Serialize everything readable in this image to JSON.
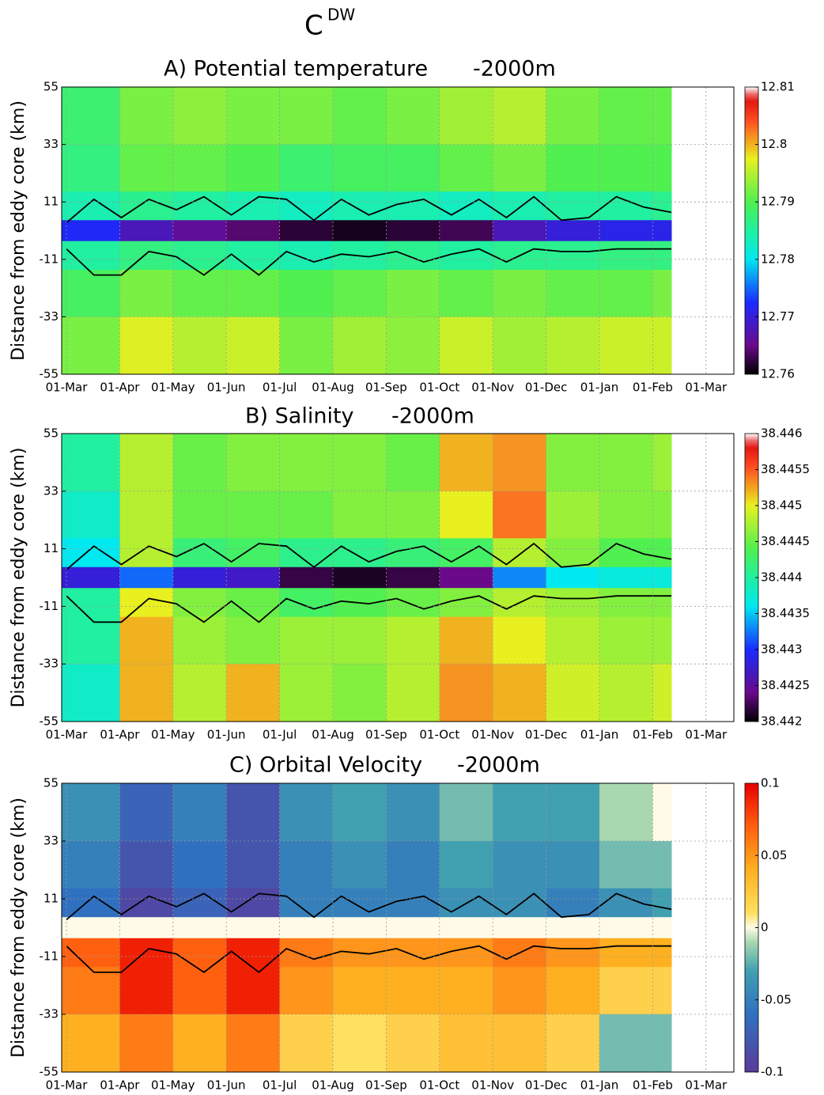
{
  "figure": {
    "title": "C",
    "superscript": "DW"
  },
  "chart_data": [
    {
      "type": "heatmap",
      "title": "A) Potential temperature",
      "depth": "-2000m",
      "ylabel": "Distance from eddy core (km)",
      "xticks": [
        "01-Mar",
        "01-Apr",
        "01-May",
        "01-Jun",
        "01-Jul",
        "01-Aug",
        "01-Sep",
        "01-Oct",
        "01-Nov",
        "01-Dec",
        "01-Jan",
        "01-Feb",
        "01-Mar"
      ],
      "y": [
        44,
        22,
        8,
        0,
        -8,
        -22,
        -44
      ],
      "ylim": [
        -55,
        55
      ],
      "yticks": [
        55,
        33,
        11,
        -11,
        -33,
        -55
      ],
      "grid": true,
      "colormap": "jet",
      "clim": [
        12.76,
        12.81
      ],
      "cticks": [
        12.76,
        12.77,
        12.78,
        12.79,
        12.8,
        12.81
      ],
      "z": [
        [
          12.788,
          12.792,
          12.793,
          12.792,
          12.792,
          12.791,
          12.792,
          12.794,
          12.795,
          12.792,
          12.791,
          12.791
        ],
        [
          12.787,
          12.791,
          12.791,
          12.79,
          12.788,
          12.789,
          12.789,
          12.791,
          12.792,
          12.79,
          12.79,
          12.79
        ],
        [
          12.784,
          12.786,
          12.785,
          12.784,
          12.783,
          12.784,
          12.784,
          12.783,
          12.784,
          12.785,
          12.785,
          12.786
        ],
        [
          12.772,
          12.768,
          12.766,
          12.764,
          12.762,
          12.761,
          12.762,
          12.763,
          12.768,
          12.77,
          12.771,
          12.771
        ],
        [
          12.785,
          12.787,
          12.786,
          12.785,
          12.784,
          12.785,
          12.786,
          12.785,
          12.786,
          12.786,
          12.787,
          12.787
        ],
        [
          12.789,
          12.792,
          12.791,
          12.791,
          12.79,
          12.791,
          12.792,
          12.791,
          12.792,
          12.791,
          12.791,
          12.792
        ],
        [
          12.792,
          12.797,
          12.795,
          12.796,
          12.792,
          12.794,
          12.793,
          12.796,
          12.794,
          12.795,
          12.796,
          12.796
        ]
      ],
      "contours": [
        [
          3,
          12,
          5,
          12,
          8,
          13,
          6,
          13,
          12,
          4,
          12,
          6,
          10,
          12,
          6,
          12,
          5,
          13,
          4,
          5,
          13,
          9,
          7
        ],
        [
          -7,
          -17,
          -17,
          -8,
          -10,
          -17,
          -9,
          -17,
          -8,
          -12,
          -9,
          -10,
          -8,
          -12,
          -9,
          -7,
          -12,
          -7,
          -8,
          -8,
          -7,
          -7,
          -7
        ]
      ]
    },
    {
      "type": "heatmap",
      "title": "B) Salinity",
      "depth": "-2000m",
      "ylabel": "Distance from eddy core (km)",
      "xticks": [
        "01-Mar",
        "01-Apr",
        "01-May",
        "01-Jun",
        "01-Jul",
        "01-Aug",
        "01-Sep",
        "01-Oct",
        "01-Nov",
        "01-Dec",
        "01-Jan",
        "01-Feb",
        "01-Mar"
      ],
      "y": [
        44,
        22,
        8,
        0,
        -8,
        -22,
        -44
      ],
      "ylim": [
        -55,
        55
      ],
      "yticks": [
        55,
        33,
        11,
        -11,
        -33,
        -55
      ],
      "grid": true,
      "colormap": "jet",
      "clim": [
        38.442,
        38.446
      ],
      "cticks": [
        38.442,
        38.4425,
        38.443,
        38.4435,
        38.444,
        38.4445,
        38.445,
        38.4455,
        38.446
      ],
      "z": [
        [
          38.444,
          38.4448,
          38.4445,
          38.4446,
          38.4446,
          38.4446,
          38.4445,
          38.4452,
          38.4453,
          38.4446,
          38.4446,
          38.4447
        ],
        [
          38.4438,
          38.4448,
          38.4445,
          38.4445,
          38.4445,
          38.4446,
          38.4446,
          38.445,
          38.4454,
          38.4447,
          38.4446,
          38.4446
        ],
        [
          38.4436,
          38.4448,
          38.4442,
          38.4443,
          38.4441,
          38.4441,
          38.4442,
          38.4443,
          38.4448,
          38.4446,
          38.4444,
          38.4444
        ],
        [
          38.4428,
          38.4432,
          38.4428,
          38.4427,
          38.4422,
          38.4421,
          38.4422,
          38.4424,
          38.4433,
          38.4436,
          38.4437,
          38.4437
        ],
        [
          38.444,
          38.445,
          38.4446,
          38.4445,
          38.4443,
          38.4444,
          38.4445,
          38.4446,
          38.4448,
          38.4447,
          38.4446,
          38.4446
        ],
        [
          38.444,
          38.4452,
          38.4447,
          38.4446,
          38.4447,
          38.4447,
          38.4448,
          38.4452,
          38.445,
          38.4448,
          38.4447,
          38.4447
        ],
        [
          38.4438,
          38.4452,
          38.4448,
          38.4452,
          38.4447,
          38.4446,
          38.4448,
          38.4453,
          38.4452,
          38.4449,
          38.4448,
          38.4449
        ]
      ],
      "contours": [
        [
          3,
          12,
          5,
          12,
          8,
          13,
          6,
          13,
          12,
          4,
          12,
          6,
          10,
          12,
          6,
          12,
          5,
          13,
          4,
          5,
          13,
          9,
          7
        ],
        [
          -7,
          -17,
          -17,
          -8,
          -10,
          -17,
          -9,
          -17,
          -8,
          -12,
          -9,
          -10,
          -8,
          -12,
          -9,
          -7,
          -12,
          -7,
          -8,
          -8,
          -7,
          -7,
          -7
        ]
      ]
    },
    {
      "type": "heatmap",
      "title": "C) Orbital Velocity",
      "depth": "-2000m",
      "ylabel": "Distance from eddy core (km)",
      "xticks": [
        "01-Mar",
        "01-Apr",
        "01-May",
        "01-Jun",
        "01-Jul",
        "01-Aug",
        "01-Sep",
        "01-Oct",
        "01-Nov",
        "01-Dec",
        "01-Jan",
        "01-Feb",
        "01-Mar"
      ],
      "y": [
        44,
        22,
        8,
        0,
        -8,
        -22,
        -44
      ],
      "ylim": [
        -55,
        55
      ],
      "yticks": [
        55,
        33,
        11,
        -11,
        -33,
        -55
      ],
      "grid": true,
      "colormap": "diverging",
      "clim": [
        -0.1,
        0.1
      ],
      "cticks": [
        -0.1,
        -0.05,
        0,
        0.05,
        0.1
      ],
      "z": [
        [
          -0.04,
          -0.07,
          -0.05,
          -0.08,
          -0.04,
          -0.03,
          -0.04,
          -0.02,
          -0.03,
          -0.03,
          -0.01,
          0.0
        ],
        [
          -0.05,
          -0.08,
          -0.06,
          -0.08,
          -0.05,
          -0.04,
          -0.05,
          -0.03,
          -0.04,
          -0.04,
          -0.02,
          -0.02
        ],
        [
          -0.06,
          -0.09,
          -0.07,
          -0.09,
          -0.05,
          -0.05,
          -0.05,
          -0.04,
          -0.04,
          -0.05,
          -0.04,
          -0.03
        ],
        [
          0.0,
          0.0,
          0.0,
          0.0,
          0.0,
          0.0,
          0.0,
          0.0,
          0.0,
          0.0,
          0.0,
          0.0
        ],
        [
          0.07,
          0.09,
          0.07,
          0.09,
          0.06,
          0.05,
          0.05,
          0.05,
          0.06,
          0.05,
          0.04,
          0.04
        ],
        [
          0.06,
          0.09,
          0.07,
          0.09,
          0.05,
          0.04,
          0.04,
          0.04,
          0.05,
          0.04,
          0.02,
          0.02
        ],
        [
          0.04,
          0.06,
          0.04,
          0.06,
          0.02,
          0.01,
          0.02,
          0.03,
          0.03,
          0.02,
          -0.02,
          -0.02
        ]
      ],
      "contours": [
        [
          3,
          12,
          5,
          12,
          8,
          13,
          6,
          13,
          12,
          4,
          12,
          6,
          10,
          12,
          6,
          12,
          5,
          13,
          4,
          5,
          13,
          9,
          7
        ],
        [
          -7,
          -17,
          -17,
          -8,
          -10,
          -17,
          -9,
          -17,
          -8,
          -12,
          -9,
          -10,
          -8,
          -12,
          -9,
          -7,
          -12,
          -7,
          -8,
          -8,
          -7,
          -7,
          -7
        ]
      ]
    }
  ]
}
